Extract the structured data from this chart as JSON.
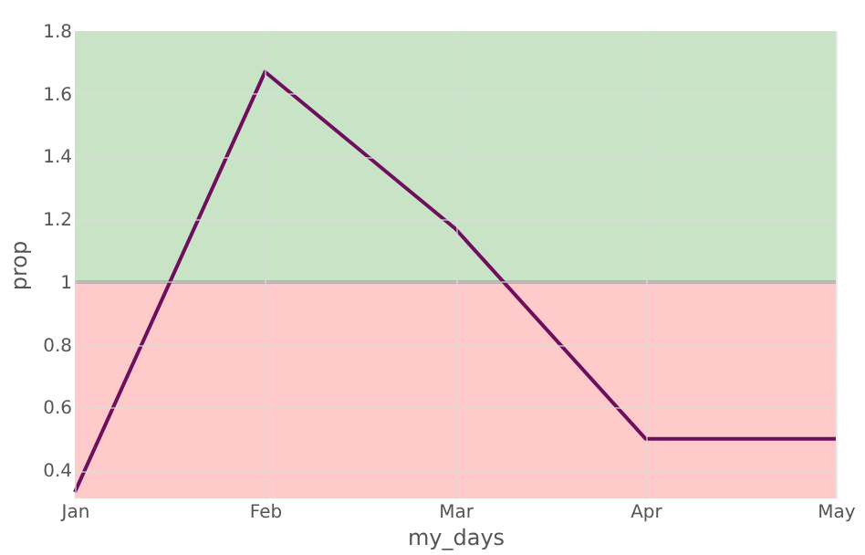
{
  "chart_data": {
    "type": "line",
    "xlabel": "my_days",
    "ylabel": "prop",
    "categories": [
      "Jan",
      "Feb",
      "Mar",
      "Apr",
      "May"
    ],
    "series": [
      {
        "color": "#6e0f5e",
        "values": [
          0.33,
          1.67,
          1.17,
          0.5,
          0.5
        ]
      }
    ],
    "ylim": [
      0.31,
      1.8
    ],
    "yticks": [
      0.4,
      0.6,
      0.8,
      1,
      1.2,
      1.4,
      1.6,
      1.8
    ],
    "bands": [
      {
        "axis": "y",
        "from": 1,
        "to": 1.8,
        "color": "#c9e3c6"
      },
      {
        "axis": "y",
        "from": 0.31,
        "to": 1,
        "color": "#ffcaca"
      }
    ],
    "ref_lines": [
      {
        "axis": "y",
        "value": 1,
        "color": "#8c8c8c"
      }
    ],
    "grid": true
  }
}
